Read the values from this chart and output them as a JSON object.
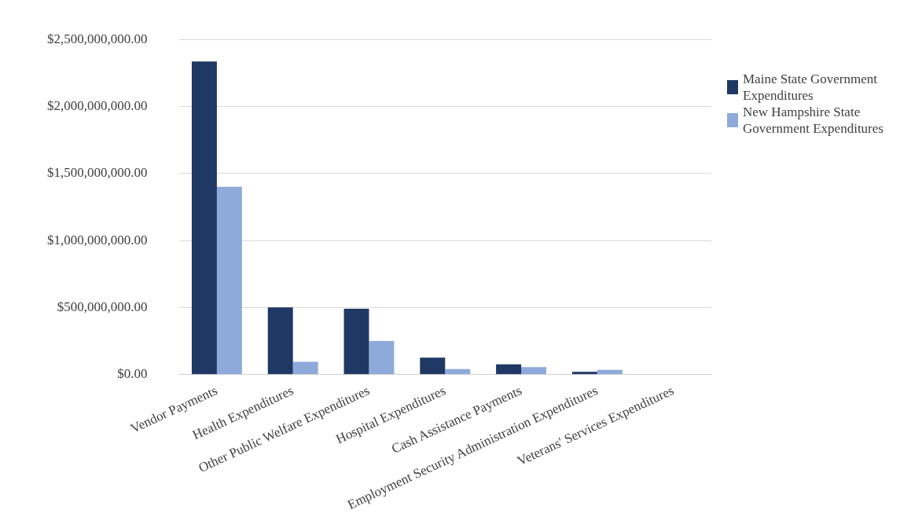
{
  "chart_data": {
    "type": "bar",
    "categories": [
      "Vendor Payments",
      "Health Expenditures",
      "Other Public Welfare Expenditures",
      "Hospital Expenditures",
      "Cash Assistance Payments",
      "Employment Security Administration Expenditures",
      "Veterans' Services Expenditures"
    ],
    "series": [
      {
        "name": "Maine State Government Expenditures",
        "color": "#1f3864",
        "values": [
          2335000000,
          500000000,
          490000000,
          125000000,
          75000000,
          20000000,
          0
        ]
      },
      {
        "name": "New Hampshire State Government Expenditures",
        "color": "#8eaadb",
        "values": [
          1400000000,
          95000000,
          250000000,
          40000000,
          55000000,
          35000000,
          0
        ]
      }
    ],
    "ylim": [
      0,
      2500000000
    ],
    "yticks": [
      {
        "value": 0,
        "label": "$0.00"
      },
      {
        "value": 500000000,
        "label": "$500,000,000.00"
      },
      {
        "value": 1000000000,
        "label": "$1,000,000,000.00"
      },
      {
        "value": 1500000000,
        "label": "$1,500,000,000.00"
      },
      {
        "value": 2000000000,
        "label": "$2,000,000,000.00"
      },
      {
        "value": 2500000000,
        "label": "$2,500,000,000.00"
      }
    ],
    "grid": "y",
    "legend": "right"
  }
}
